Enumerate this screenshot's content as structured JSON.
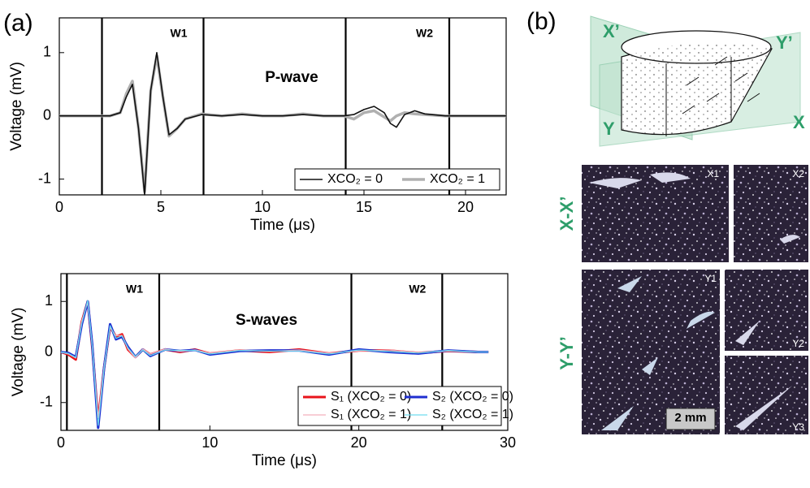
{
  "figure_label_a": "(a)",
  "chart_data": [
    {
      "type": "line",
      "annotation": "P-wave",
      "xlabel": "Time (μs)",
      "ylabel": "Voltage (mV)",
      "xlim": [
        0,
        22
      ],
      "ylim": [
        -1.25,
        1.55
      ],
      "xticks": [
        0,
        5,
        10,
        15,
        20
      ],
      "yticks": [
        -1,
        0,
        1
      ],
      "windows": [
        2.1,
        7.1,
        14.1,
        19.2
      ],
      "window_labels": [
        "W1",
        "W2"
      ],
      "legend": "lower right",
      "x": [
        0,
        1,
        2,
        2.5,
        3,
        3.3,
        3.6,
        3.9,
        4.2,
        4.5,
        4.8,
        5.1,
        5.4,
        5.8,
        6.2,
        7,
        8,
        9,
        10,
        11,
        12,
        13,
        14,
        14.5,
        15,
        15.5,
        16,
        16.3,
        16.6,
        17,
        17.5,
        18,
        19,
        20,
        21,
        22
      ],
      "series": [
        {
          "name": "XCO₂ = 0",
          "color": "#111111",
          "line_width": 1.6,
          "values": [
            0,
            0,
            0,
            0,
            0.05,
            0.3,
            0.5,
            -0.2,
            -1.25,
            0.4,
            1.0,
            0.3,
            -0.3,
            -0.2,
            -0.05,
            0.02,
            0,
            0.02,
            0,
            0,
            0.02,
            0,
            0,
            0.02,
            0.1,
            0.15,
            0.05,
            -0.12,
            -0.18,
            0.02,
            0.08,
            0.03,
            0,
            0,
            0,
            0
          ]
        },
        {
          "name": "XCO₂ = 1",
          "color": "#b0b0b0",
          "line_width": 3.5,
          "values": [
            0,
            0,
            0,
            0,
            0.05,
            0.35,
            0.55,
            -0.2,
            -1.2,
            0.4,
            0.95,
            0.3,
            -0.32,
            -0.2,
            -0.05,
            0.03,
            0,
            0.03,
            0,
            0,
            0.03,
            0,
            0,
            -0.05,
            0.05,
            0.08,
            -0.02,
            -0.08,
            0,
            0.05,
            0.03,
            0.02,
            0,
            0,
            0,
            0
          ]
        }
      ]
    },
    {
      "type": "line",
      "annotation": "S-waves",
      "xlabel": "Time (μs)",
      "ylabel": "Voltage (mV)",
      "xlim": [
        0,
        30
      ],
      "ylim": [
        -1.55,
        1.55
      ],
      "xticks": [
        0,
        10,
        20,
        30
      ],
      "yticks": [
        -1,
        0,
        1
      ],
      "windows": [
        0.4,
        6.6,
        19.5,
        25.6
      ],
      "window_labels": [
        "W1",
        "W2"
      ],
      "legend": "lower right",
      "x": [
        0,
        0.5,
        1,
        1.4,
        1.8,
        2.1,
        2.5,
        2.9,
        3.3,
        3.7,
        4.1,
        4.5,
        5,
        5.5,
        6,
        7,
        8,
        9,
        10,
        12,
        14,
        16,
        18,
        20,
        22,
        24,
        26,
        28,
        28.7
      ],
      "series": [
        {
          "name": "S₁ (XCO₂ = 0)",
          "color": "#e8141b",
          "line_width": 3,
          "values": [
            0,
            -0.05,
            -0.15,
            0.6,
            1.0,
            0.1,
            -1.35,
            -0.3,
            0.5,
            0.3,
            0.35,
            0.05,
            -0.1,
            0.05,
            -0.05,
            0.05,
            0,
            0.05,
            -0.03,
            0.03,
            0,
            0.05,
            -0.03,
            0.03,
            0.03,
            -0.02,
            0.02,
            0,
            0
          ]
        },
        {
          "name": "S₂ (XCO₂ = 0)",
          "color": "#1f2fd0",
          "line_width": 3,
          "values": [
            0,
            -0.02,
            -0.1,
            0.55,
            1.0,
            0.15,
            -1.5,
            -0.3,
            0.55,
            0.25,
            0.3,
            0.1,
            -0.1,
            0.05,
            -0.08,
            0.05,
            0.02,
            0.04,
            -0.05,
            0.02,
            0.03,
            0.03,
            -0.05,
            0.05,
            0,
            -0.03,
            0.03,
            0,
            0
          ]
        },
        {
          "name": "S₁ (XCO₂ = 1)",
          "color": "#f4b0bc",
          "line_width": 1.2,
          "values": [
            0,
            -0.04,
            -0.12,
            0.62,
            0.98,
            0.12,
            -1.3,
            -0.28,
            0.48,
            0.32,
            0.33,
            0.06,
            -0.12,
            0.06,
            -0.04,
            0.06,
            0.01,
            0.04,
            -0.02,
            0.04,
            0.01,
            0.04,
            -0.02,
            0.02,
            0.04,
            -0.01,
            0.02,
            0,
            0
          ]
        },
        {
          "name": "S₂ (XCO₂ = 1)",
          "color": "#6fdcef",
          "line_width": 1.2,
          "values": [
            0,
            -0.03,
            -0.11,
            0.57,
            1.02,
            0.13,
            -1.45,
            -0.32,
            0.52,
            0.27,
            0.32,
            0.08,
            -0.09,
            0.04,
            -0.07,
            0.04,
            0.03,
            0.03,
            -0.04,
            0.03,
            0.02,
            0.02,
            -0.04,
            0.04,
            0.01,
            -0.02,
            0.03,
            0,
            0
          ]
        }
      ]
    }
  ],
  "panel_b": {
    "label": "(b)",
    "diagram_labels": [
      "X’",
      "Y’",
      "Y",
      "X"
    ],
    "section_labels": [
      "X-X’",
      "Y-Y’"
    ],
    "image_labels": [
      "X1",
      "X2",
      "Y1",
      "Y2",
      "Y3"
    ],
    "scale_bar": "2 mm"
  }
}
